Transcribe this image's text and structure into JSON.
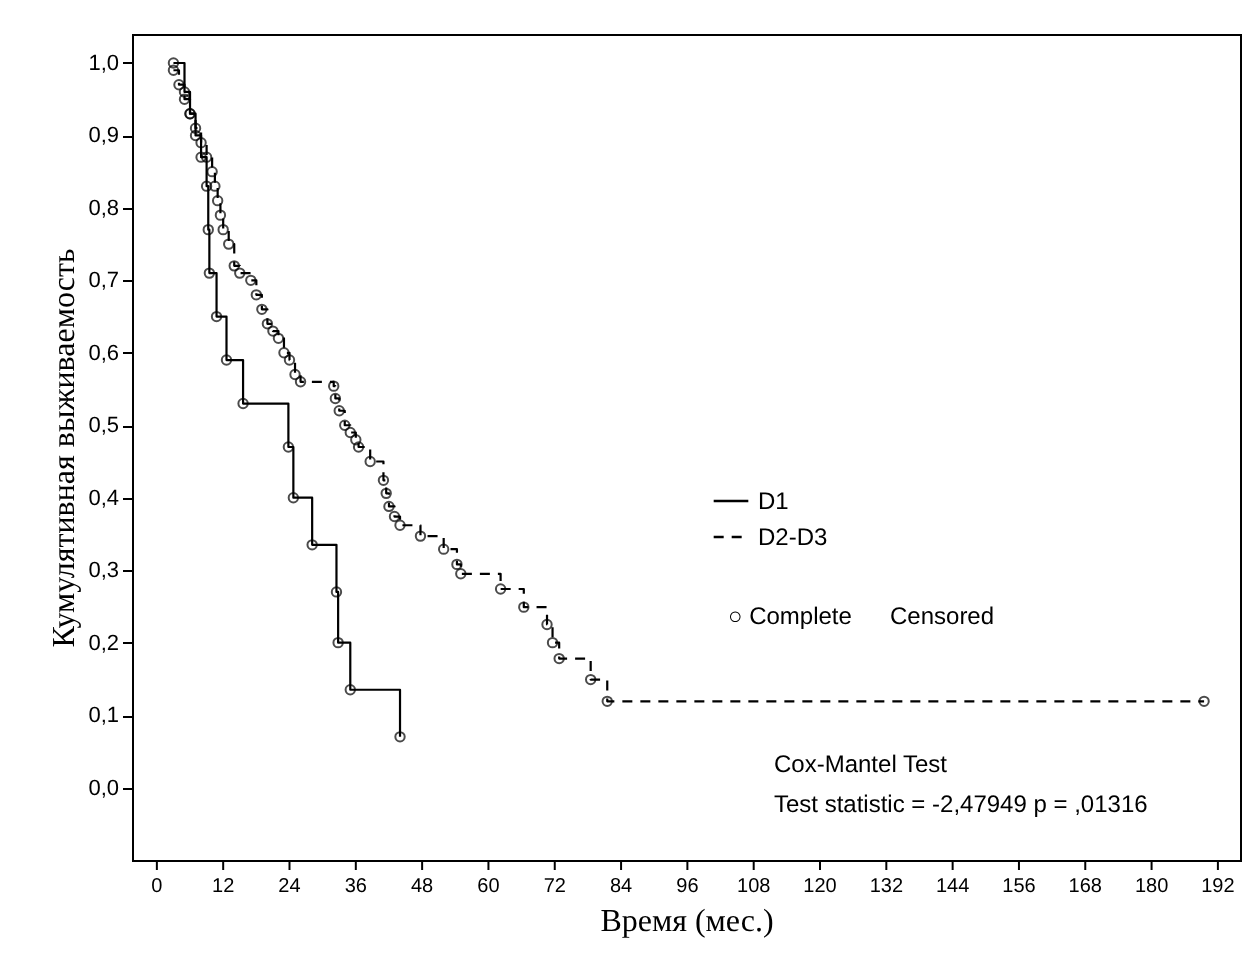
{
  "chart_data": {
    "type": "step",
    "xlabel": "Время (мес.)",
    "ylabel": "Кумулятивная выживаемость",
    "xlim": [
      -4.5,
      196
    ],
    "ylim": [
      -0.1,
      1.04
    ],
    "xticks": [
      0,
      12,
      24,
      36,
      48,
      60,
      72,
      84,
      96,
      108,
      120,
      132,
      144,
      156,
      168,
      180,
      192
    ],
    "yticks": [
      {
        "value": 0.0,
        "label": "0,0"
      },
      {
        "value": 0.1,
        "label": "0,1"
      },
      {
        "value": 0.2,
        "label": "0,2"
      },
      {
        "value": 0.3,
        "label": "0,3"
      },
      {
        "value": 0.4,
        "label": "0,4"
      },
      {
        "value": 0.5,
        "label": "0,5"
      },
      {
        "value": 0.6,
        "label": "0,6"
      },
      {
        "value": 0.7,
        "label": "0,7"
      },
      {
        "value": 0.8,
        "label": "0,8"
      },
      {
        "value": 0.9,
        "label": "0,9"
      },
      {
        "value": 1.0,
        "label": "1,0"
      }
    ],
    "grid": false,
    "legend": "right",
    "marker": "circle",
    "series": [
      {
        "name": "D1",
        "color": "#000000",
        "line_style": "solid",
        "x": [
          3,
          5,
          6,
          7,
          8,
          9,
          9.3,
          9.5,
          10.8,
          12.6,
          15.6,
          23.8,
          24.7,
          28.1,
          32.5,
          32.8,
          35,
          44
        ],
        "values": [
          1.0,
          0.96,
          0.93,
          0.9,
          0.87,
          0.83,
          0.77,
          0.71,
          0.65,
          0.59,
          0.53,
          0.47,
          0.4,
          0.335,
          0.27,
          0.2,
          0.135,
          0.07
        ]
      },
      {
        "name": "D2-D3",
        "color": "#000000",
        "line_style": "dashed",
        "x": [
          3,
          4,
          5,
          6,
          7,
          8,
          9,
          10,
          10.5,
          11,
          11.5,
          12,
          13,
          14,
          15,
          17,
          18,
          19,
          20,
          21,
          22,
          23,
          24,
          25,
          26,
          32,
          32.3,
          33,
          34,
          35,
          36,
          36.5,
          38.6,
          41,
          41.5,
          42,
          43,
          44,
          47.7,
          51.9,
          54.3,
          55,
          62.2,
          66.4,
          70.6,
          71.6,
          72.8,
          78.5,
          81.5,
          189.5
        ],
        "values": [
          0.99,
          0.97,
          0.95,
          0.93,
          0.91,
          0.89,
          0.87,
          0.85,
          0.83,
          0.81,
          0.79,
          0.77,
          0.75,
          0.72,
          0.71,
          0.7,
          0.68,
          0.66,
          0.64,
          0.63,
          0.62,
          0.6,
          0.59,
          0.57,
          0.56,
          0.554,
          0.537,
          0.52,
          0.5,
          0.49,
          0.48,
          0.47,
          0.45,
          0.424,
          0.406,
          0.388,
          0.374,
          0.362,
          0.347,
          0.329,
          0.308,
          0.295,
          0.274,
          0.249,
          0.225,
          0.2,
          0.178,
          0.149,
          0.119,
          0.119
        ]
      }
    ],
    "annotations": [
      "○ Complete",
      "Censored",
      "Cox-Mantel Test",
      "Test statistic = -2,47949 p = ,01316"
    ]
  }
}
